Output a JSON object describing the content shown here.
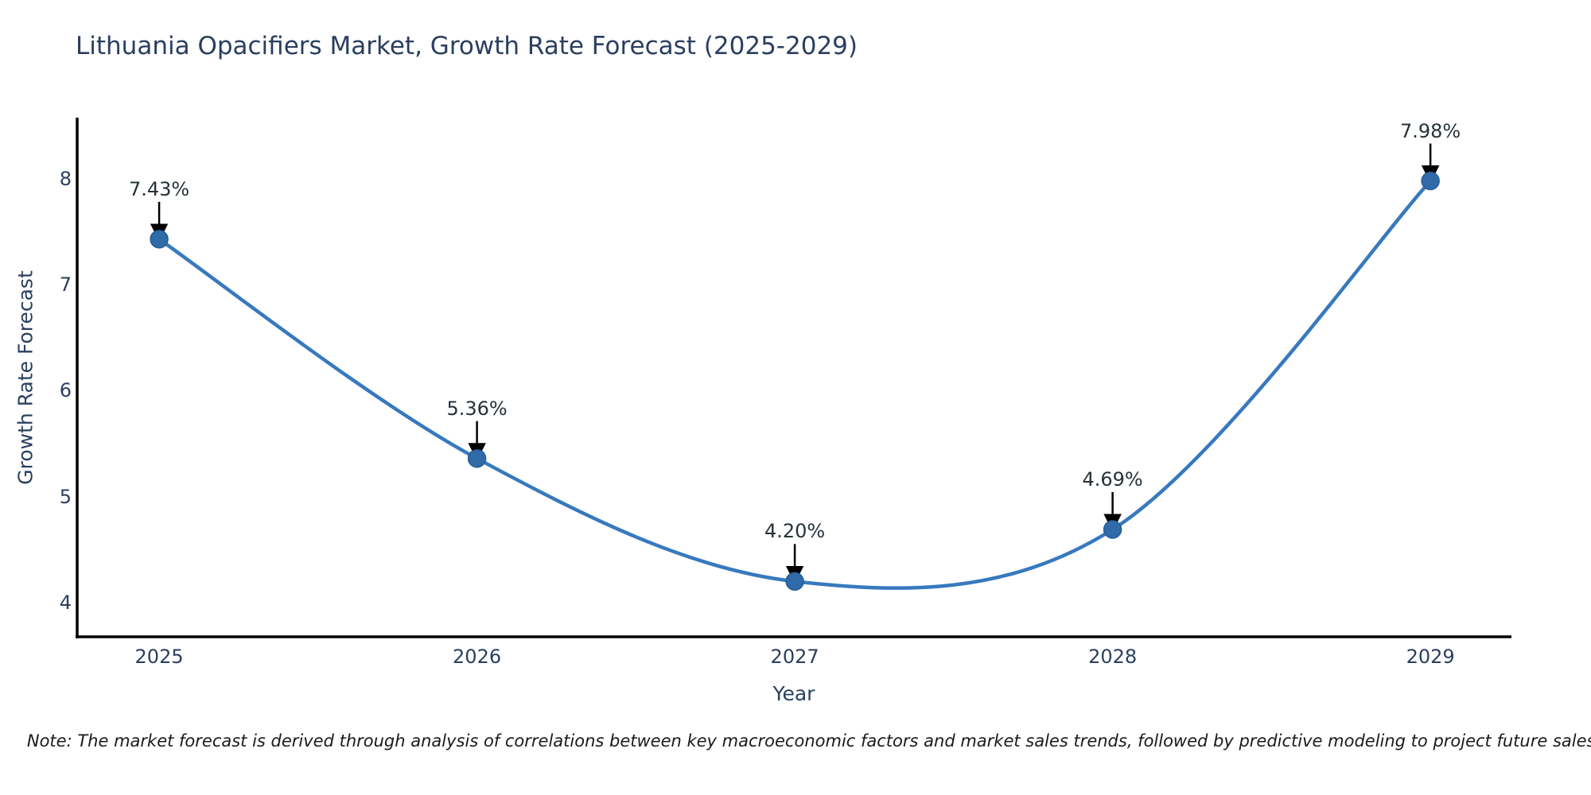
{
  "note": "Note: The market forecast is derived through analysis of correlations between key macroeconomic factors and market sales trends, followed by predictive modeling to project future sales.",
  "chart_data": {
    "type": "line",
    "title": "Lithuania Opacifiers Market, Growth Rate Forecast (2025-2029)",
    "xlabel": "Year",
    "ylabel": "Growth Rate Forecast",
    "categories": [
      "2025",
      "2026",
      "2027",
      "2028",
      "2029"
    ],
    "x": [
      2025,
      2026,
      2027,
      2028,
      2029
    ],
    "values": [
      7.43,
      5.36,
      4.2,
      4.69,
      7.98
    ],
    "point_labels": [
      "7.43%",
      "5.36%",
      "4.20%",
      "4.69%",
      "7.98%"
    ],
    "yticks": [
      4,
      5,
      6,
      7,
      8
    ],
    "ytick_labels": [
      "4",
      "5",
      "6",
      "7",
      "8"
    ],
    "xlim": [
      2024.742,
      2029.255
    ],
    "ylim": [
      3.677,
      8.577
    ],
    "grid": false,
    "legend": "none",
    "line_shape": "spline",
    "line_color": "#3779be",
    "marker_color": "#2f6ba8",
    "marker_edge_color": "#285d92",
    "arrow_color": "#000000",
    "axis_color": "#000000",
    "text_color": "#2a3f5f",
    "annotation_color": "#263238"
  }
}
